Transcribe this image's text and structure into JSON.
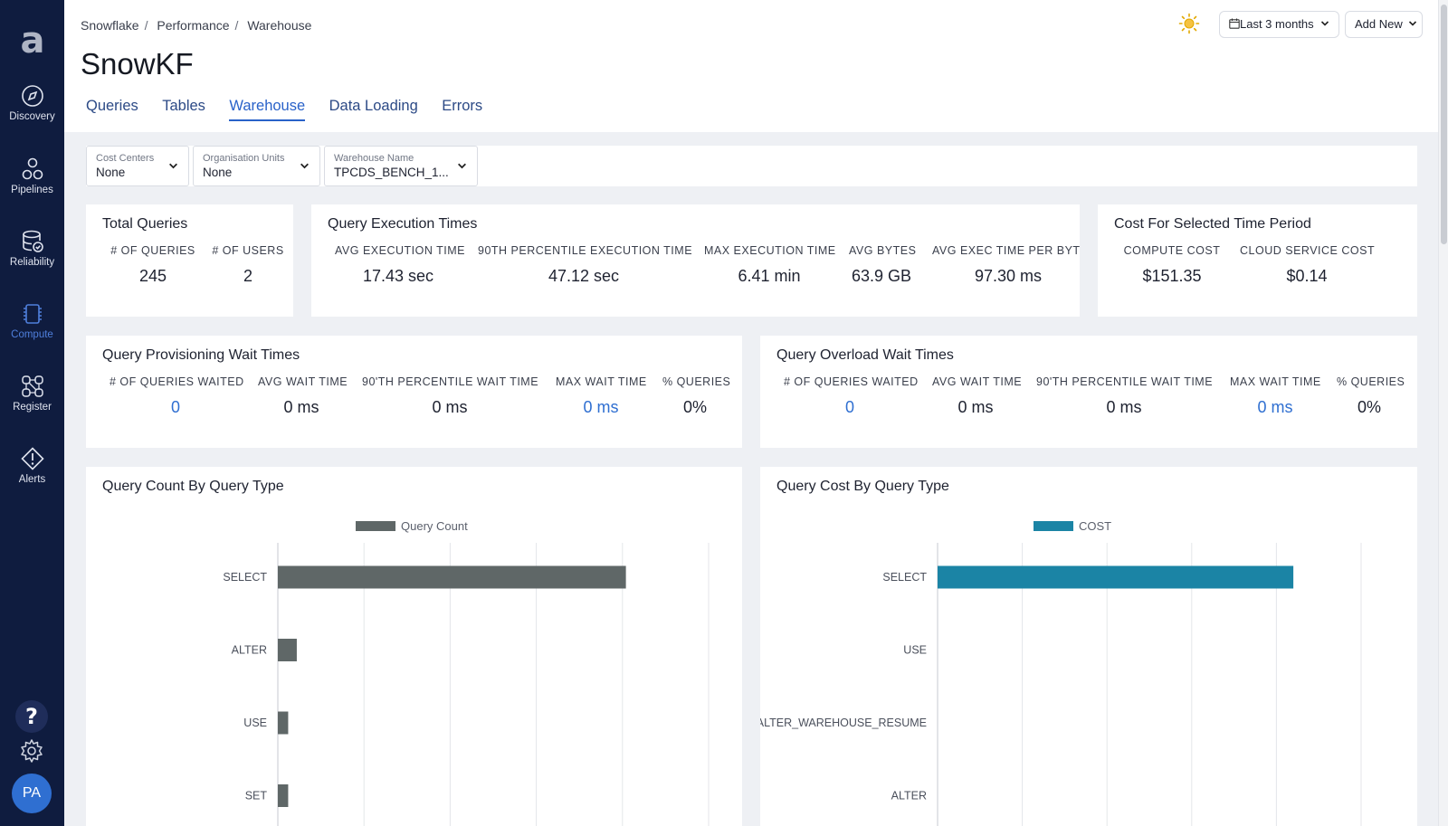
{
  "sidebar": {
    "items": [
      {
        "label": "Discovery",
        "icon": "compass-icon"
      },
      {
        "label": "Pipelines",
        "icon": "pipelines-icon"
      },
      {
        "label": "Reliability",
        "icon": "database-check-icon"
      },
      {
        "label": "Compute",
        "icon": "chip-icon",
        "active": true
      },
      {
        "label": "Register",
        "icon": "register-icon"
      },
      {
        "label": "Alerts",
        "icon": "alert-icon"
      }
    ],
    "help": "?",
    "avatar": "PA"
  },
  "breadcrumb": [
    "Snowflake",
    "Performance",
    "Warehouse"
  ],
  "page_title": "SnowKF",
  "tabs": [
    "Queries",
    "Tables",
    "Warehouse",
    "Data Loading",
    "Errors"
  ],
  "active_tab": "Warehouse",
  "header_buttons": {
    "range": "Last 3 months",
    "add_new": "Add New"
  },
  "filters": [
    {
      "label": "Cost Centers",
      "value": "None"
    },
    {
      "label": "Organisation Units",
      "value": "None"
    },
    {
      "label": "Warehouse Name",
      "value": "TPCDS_BENCH_1..."
    }
  ],
  "total_queries": {
    "title": "Total Queries",
    "metrics": [
      {
        "label": "# OF QUERIES",
        "value": "245"
      },
      {
        "label": "# OF USERS",
        "value": "2"
      }
    ]
  },
  "execution_times": {
    "title": "Query Execution Times",
    "metrics": [
      {
        "label": "AVG EXECUTION TIME",
        "value": "17.43 sec"
      },
      {
        "label": "90TH PERCENTILE EXECUTION TIME",
        "value": "47.12 sec"
      },
      {
        "label": "MAX EXECUTION TIME",
        "value": "6.41 min"
      },
      {
        "label": "AVG BYTES",
        "value": "63.9 GB"
      },
      {
        "label": "AVG EXEC TIME PER BYTE",
        "value": "97.30 ms"
      }
    ]
  },
  "cost_period": {
    "title": "Cost For Selected Time Period",
    "metrics": [
      {
        "label": "COMPUTE COST",
        "value": "$151.35"
      },
      {
        "label": "CLOUD SERVICE COST",
        "value": "$0.14"
      }
    ]
  },
  "provisioning_wait": {
    "title": "Query Provisioning Wait Times",
    "metrics": [
      {
        "label": "# OF QUERIES WAITED",
        "value": "0"
      },
      {
        "label": "AVG WAIT TIME",
        "value": "0 ms"
      },
      {
        "label": "90'TH PERCENTILE WAIT TIME",
        "value": "0 ms"
      },
      {
        "label": "MAX WAIT TIME",
        "value": "0 ms"
      },
      {
        "label": "% QUERIES",
        "value": "0%"
      }
    ]
  },
  "overload_wait": {
    "title": "Query Overload Wait Times",
    "metrics": [
      {
        "label": "# OF QUERIES WAITED",
        "value": "0"
      },
      {
        "label": "AVG WAIT TIME",
        "value": "0 ms"
      },
      {
        "label": "90'TH PERCENTILE WAIT TIME",
        "value": "0 ms"
      },
      {
        "label": "MAX WAIT TIME",
        "value": "0 ms"
      },
      {
        "label": "% QUERIES",
        "value": "0%"
      }
    ]
  },
  "colors": {
    "count_bar": "#5f6767",
    "cost_bar": "#1b84a5",
    "link": "#2f6fd1",
    "sidebar": "#0f1c3f"
  },
  "chart_data": [
    {
      "type": "bar",
      "orientation": "horizontal",
      "title": "Query Count By Query Type",
      "categories": [
        "SELECT",
        "ALTER",
        "USE",
        "SET"
      ],
      "series": [
        {
          "name": "Query Count",
          "values": [
            202,
            11,
            6,
            6
          ]
        }
      ],
      "xlim": [
        0,
        250
      ],
      "grid": true,
      "legend": "top-center"
    },
    {
      "type": "bar",
      "orientation": "horizontal",
      "title": "Query Cost By Query Type",
      "categories": [
        "SELECT",
        "USE",
        "ALTER_WAREHOUSE_RESUME",
        "ALTER"
      ],
      "series": [
        {
          "name": "COST",
          "values": [
            151.2,
            0,
            0,
            0
          ]
        }
      ],
      "xlim": [
        0,
        180
      ],
      "grid": true,
      "legend": "top-center"
    }
  ]
}
